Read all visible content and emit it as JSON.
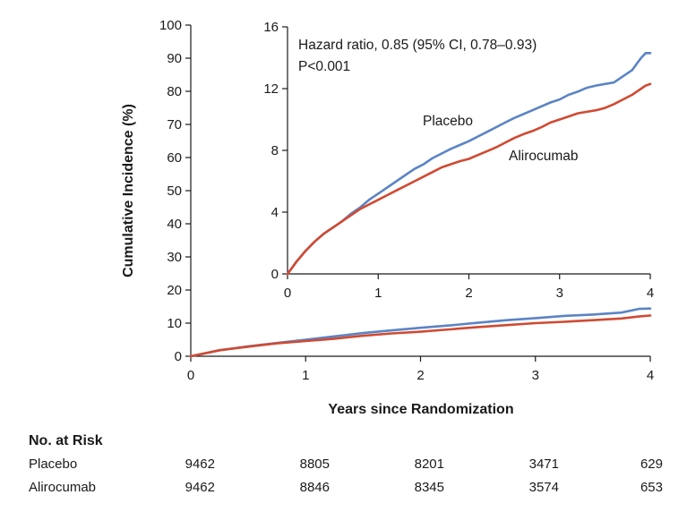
{
  "chart_data": [
    {
      "type": "line",
      "role": "main",
      "xlabel": "Years since Randomization",
      "ylabel": "Cumulative Incidence (%)",
      "xlim": [
        0,
        4
      ],
      "ylim": [
        0,
        100
      ],
      "x_ticks": [
        0,
        1,
        2,
        3,
        4
      ],
      "y_ticks": [
        0,
        10,
        20,
        30,
        40,
        50,
        60,
        70,
        80,
        90,
        100
      ],
      "grid": false,
      "series": [
        {
          "name": "Placebo",
          "color": "#5b84c4",
          "x": [
            0,
            0.25,
            0.5,
            0.75,
            1,
            1.25,
            1.5,
            1.75,
            2,
            2.25,
            2.5,
            2.75,
            3,
            3.25,
            3.5,
            3.75,
            3.9,
            4
          ],
          "y": [
            0,
            1.8,
            3.0,
            4.0,
            5.0,
            6.0,
            7.0,
            7.8,
            8.6,
            9.3,
            10.1,
            10.9,
            11.5,
            12.2,
            12.6,
            13.2,
            14.3,
            14.4
          ]
        },
        {
          "name": "Alirocumab",
          "color": "#d04a32",
          "x": [
            0,
            0.25,
            0.5,
            0.75,
            1,
            1.25,
            1.5,
            1.75,
            2,
            2.25,
            2.5,
            2.75,
            3,
            3.25,
            3.5,
            3.75,
            3.9,
            4
          ],
          "y": [
            0,
            1.8,
            2.9,
            3.9,
            4.6,
            5.3,
            6.2,
            6.9,
            7.4,
            8.1,
            8.8,
            9.4,
            10.0,
            10.4,
            10.9,
            11.4,
            12.0,
            12.3
          ]
        }
      ]
    },
    {
      "type": "line",
      "role": "inset",
      "annotation_lines": [
        "Hazard ratio, 0.85 (95% CI, 0.78–0.93)",
        "P<0.001"
      ],
      "xlim": [
        0,
        4
      ],
      "ylim": [
        0,
        16
      ],
      "x_ticks": [
        0,
        1,
        2,
        3,
        4
      ],
      "y_ticks": [
        0,
        4,
        8,
        12,
        16
      ],
      "grid": false,
      "series": [
        {
          "name": "Placebo",
          "color": "#5b84c4",
          "x": [
            0,
            0.05,
            0.1,
            0.2,
            0.3,
            0.4,
            0.5,
            0.6,
            0.7,
            0.8,
            0.9,
            1.0,
            1.1,
            1.2,
            1.3,
            1.4,
            1.5,
            1.6,
            1.7,
            1.8,
            1.9,
            2.0,
            2.1,
            2.2,
            2.3,
            2.4,
            2.5,
            2.6,
            2.7,
            2.8,
            2.9,
            3.0,
            3.1,
            3.2,
            3.3,
            3.4,
            3.5,
            3.6,
            3.7,
            3.8,
            3.85,
            3.9,
            3.95,
            4.0
          ],
          "y": [
            0,
            0.4,
            0.8,
            1.5,
            2.1,
            2.6,
            3.0,
            3.4,
            3.9,
            4.3,
            4.8,
            5.2,
            5.6,
            6.0,
            6.4,
            6.8,
            7.1,
            7.5,
            7.8,
            8.1,
            8.35,
            8.6,
            8.9,
            9.2,
            9.5,
            9.8,
            10.1,
            10.35,
            10.6,
            10.85,
            11.1,
            11.3,
            11.6,
            11.8,
            12.05,
            12.2,
            12.3,
            12.4,
            12.8,
            13.2,
            13.6,
            14.0,
            14.3,
            14.3
          ]
        },
        {
          "name": "Alirocumab",
          "color": "#d04a32",
          "x": [
            0,
            0.05,
            0.1,
            0.2,
            0.3,
            0.4,
            0.5,
            0.6,
            0.7,
            0.8,
            0.9,
            1.0,
            1.1,
            1.2,
            1.3,
            1.4,
            1.5,
            1.6,
            1.7,
            1.8,
            1.9,
            2.0,
            2.1,
            2.2,
            2.3,
            2.4,
            2.5,
            2.6,
            2.7,
            2.8,
            2.9,
            3.0,
            3.1,
            3.2,
            3.3,
            3.4,
            3.5,
            3.6,
            3.7,
            3.8,
            3.85,
            3.9,
            3.95,
            4.0
          ],
          "y": [
            0,
            0.4,
            0.8,
            1.5,
            2.1,
            2.6,
            3.0,
            3.4,
            3.8,
            4.2,
            4.5,
            4.8,
            5.1,
            5.4,
            5.7,
            6.0,
            6.3,
            6.6,
            6.9,
            7.1,
            7.3,
            7.45,
            7.7,
            7.95,
            8.2,
            8.5,
            8.8,
            9.05,
            9.25,
            9.5,
            9.8,
            10.0,
            10.2,
            10.4,
            10.5,
            10.6,
            10.75,
            11.0,
            11.3,
            11.6,
            11.8,
            12.0,
            12.2,
            12.3
          ]
        }
      ]
    }
  ],
  "risk_table": {
    "title": "No. at Risk",
    "rows": [
      {
        "label": "Placebo",
        "values": [
          "9462",
          "8805",
          "8201",
          "3471",
          "629"
        ]
      },
      {
        "label": "Alirocumab",
        "values": [
          "9462",
          "8846",
          "8345",
          "3574",
          "653"
        ]
      }
    ]
  }
}
